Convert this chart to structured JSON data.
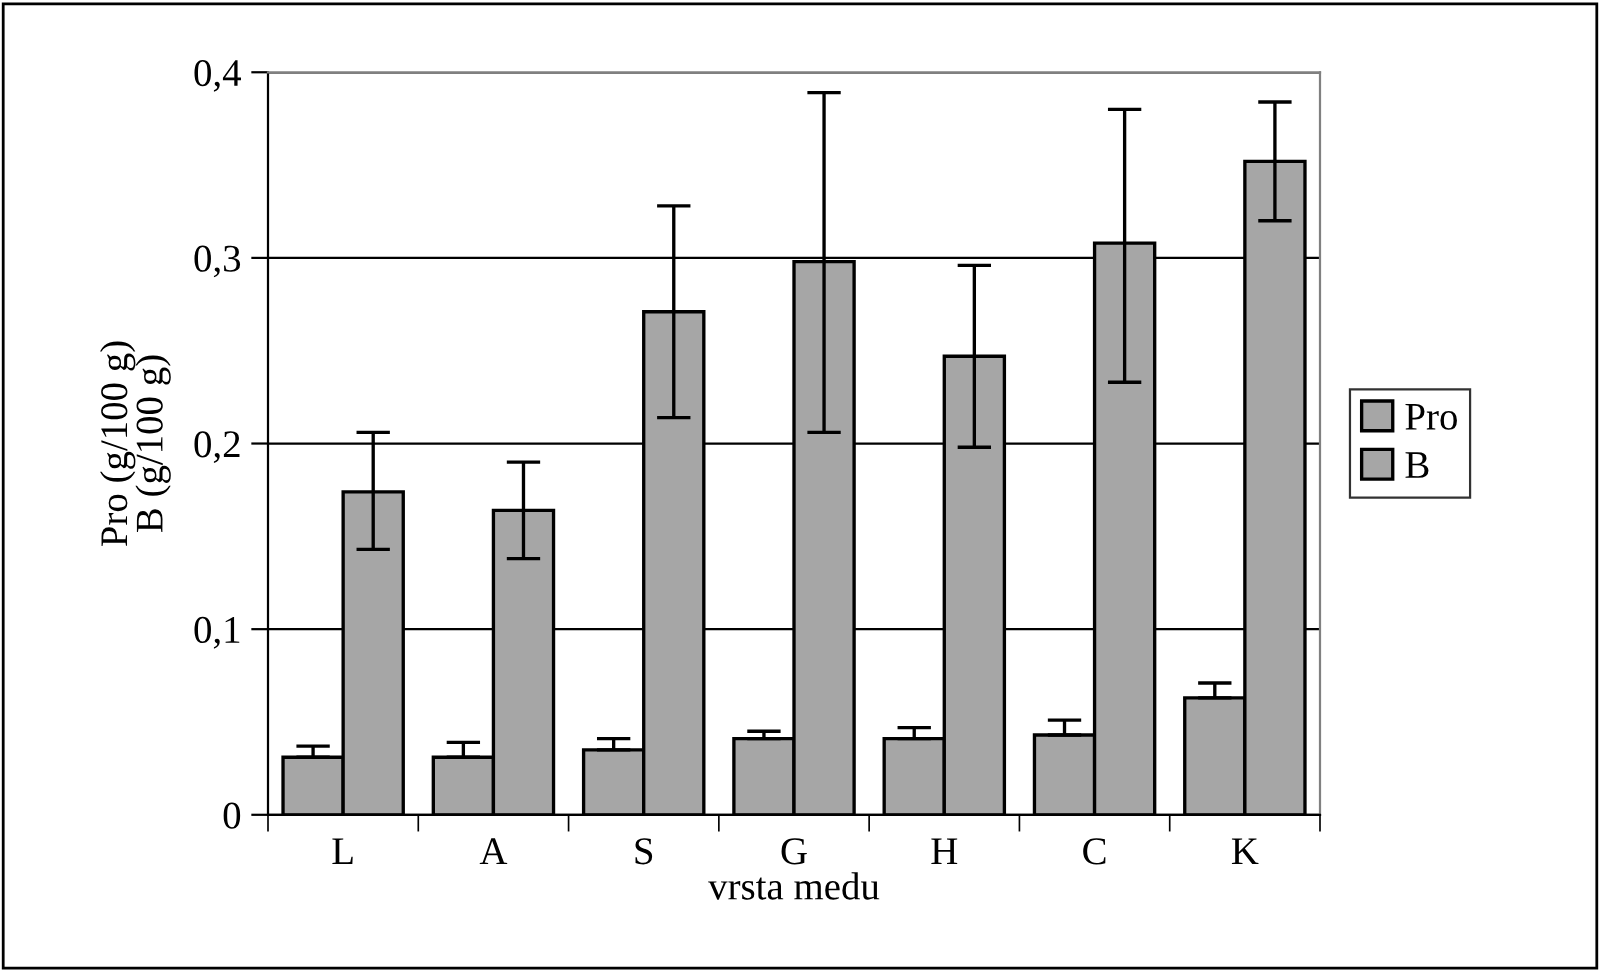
{
  "chart_data": {
    "type": "bar",
    "xlabel": "vrsta medu",
    "ylabel": "Pro (g/100 g)\nB (g/100 g)",
    "categories": [
      "L",
      "A",
      "S",
      "G",
      "H",
      "C",
      "K"
    ],
    "series": [
      {
        "name": "Pro",
        "color": "#a6a6a6",
        "values": [
          0.031,
          0.031,
          0.035,
          0.041,
          0.041,
          0.043,
          0.063
        ],
        "errors": [
          [
            0.031,
            0.037
          ],
          [
            0.031,
            0.039
          ],
          [
            0.035,
            0.041
          ],
          [
            0.041,
            0.045
          ],
          [
            0.041,
            0.047
          ],
          [
            0.043,
            0.051
          ],
          [
            0.063,
            0.071
          ]
        ]
      },
      {
        "name": "B",
        "color": "#a6a6a6",
        "values": [
          0.174,
          0.164,
          0.271,
          0.298,
          0.247,
          0.308,
          0.352
        ],
        "errors": [
          [
            0.143,
            0.206
          ],
          [
            0.138,
            0.19
          ],
          [
            0.214,
            0.328
          ],
          [
            0.206,
            0.389
          ],
          [
            0.198,
            0.296
          ],
          [
            0.233,
            0.38
          ],
          [
            0.32,
            0.384
          ]
        ]
      }
    ],
    "ylim": [
      0,
      0.4
    ],
    "yticks": [
      0,
      {
        "value": 0.1,
        "label": "0,1"
      },
      {
        "value": 0.2,
        "label": "0,2"
      },
      {
        "value": 0.3,
        "label": "0,3"
      },
      {
        "value": 0.4,
        "label": "0,4"
      }
    ],
    "grid": "y",
    "legend": "right"
  }
}
